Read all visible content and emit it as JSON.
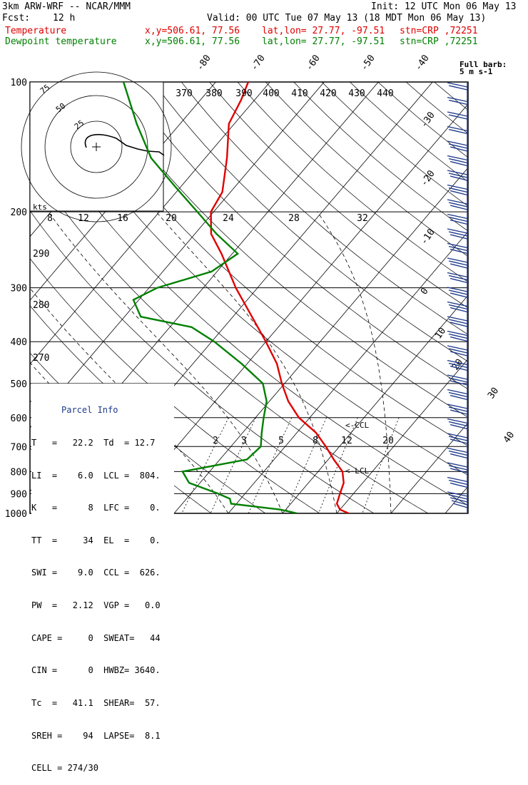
{
  "header": {
    "model": "3km ARW-WRF -- NCAR/MMM",
    "init": "Init: 12 UTC Mon 06 May 13",
    "fcst_label": "Fcst:",
    "fcst_value": "12 h",
    "valid": "Valid: 00 UTC Tue 07 May 13 (18 MDT Mon 06 May 13)",
    "temp_label": "Temperature",
    "dew_label": "Dewpoint temperature",
    "xy": "x,y=506.61, 77.56",
    "latlon": "lat,lon= 27.77, -97.51",
    "stn": "stn=CRP ,72251",
    "temp_color": "#e00000",
    "dew_color": "#008000"
  },
  "chart_data": {
    "type": "skew-t",
    "pressure_ticks": [
      100,
      200,
      300,
      400,
      500,
      600,
      700,
      800,
      900,
      1000
    ],
    "isotherm_labels": [
      "-80",
      "-70",
      "-60",
      "-50",
      "-40",
      "-30",
      "-20",
      "-10",
      "0",
      "10",
      "20",
      "30",
      "40"
    ],
    "theta_labels": [
      "370",
      "380",
      "390",
      "400",
      "410",
      "420",
      "430",
      "440",
      "290",
      "280",
      "270"
    ],
    "mixing_ratio_labels": [
      "2",
      "3",
      "5",
      "8",
      "12",
      "20"
    ],
    "hodograph_axis_labels": [
      "8",
      "12",
      "16",
      "20",
      "24",
      "28",
      "32"
    ],
    "hodograph_ring_labels": [
      "75",
      "50",
      "25"
    ],
    "hodograph_units": "kts",
    "lcl_labels": [
      "<-CCL",
      "<-LCL"
    ],
    "barb_legend": [
      "Full barb:",
      "5 m s-1"
    ],
    "temperature": [
      {
        "p": 1000,
        "t": 22.2
      },
      {
        "p": 980,
        "t": 20.0
      },
      {
        "p": 950,
        "t": 18.5
      },
      {
        "p": 900,
        "t": 17.5
      },
      {
        "p": 850,
        "t": 16.5
      },
      {
        "p": 800,
        "t": 14.5
      },
      {
        "p": 750,
        "t": 11.0
      },
      {
        "p": 700,
        "t": 7.5
      },
      {
        "p": 650,
        "t": 3.5
      },
      {
        "p": 600,
        "t": -2.0
      },
      {
        "p": 550,
        "t": -6.5
      },
      {
        "p": 500,
        "t": -10.5
      },
      {
        "p": 450,
        "t": -14.5
      },
      {
        "p": 400,
        "t": -20.0
      },
      {
        "p": 350,
        "t": -26.5
      },
      {
        "p": 300,
        "t": -34.0
      },
      {
        "p": 250,
        "t": -42.0
      },
      {
        "p": 225,
        "t": -47.0
      },
      {
        "p": 200,
        "t": -50.5
      },
      {
        "p": 180,
        "t": -51.5
      },
      {
        "p": 150,
        "t": -56.0
      },
      {
        "p": 125,
        "t": -61.0
      },
      {
        "p": 110,
        "t": -62.5
      },
      {
        "p": 100,
        "t": -64.0
      }
    ],
    "dewpoint": [
      {
        "p": 1000,
        "t": 12.7
      },
      {
        "p": 980,
        "t": 9.0
      },
      {
        "p": 950,
        "t": -1.0
      },
      {
        "p": 925,
        "t": -2.0
      },
      {
        "p": 900,
        "t": -5.0
      },
      {
        "p": 850,
        "t": -12.0
      },
      {
        "p": 800,
        "t": -15.0
      },
      {
        "p": 750,
        "t": -5.0
      },
      {
        "p": 700,
        "t": -4.5
      },
      {
        "p": 650,
        "t": -6.5
      },
      {
        "p": 600,
        "t": -8.5
      },
      {
        "p": 550,
        "t": -10.5
      },
      {
        "p": 500,
        "t": -14.0
      },
      {
        "p": 450,
        "t": -21.0
      },
      {
        "p": 400,
        "t": -29.5
      },
      {
        "p": 370,
        "t": -36.0
      },
      {
        "p": 350,
        "t": -47.0
      },
      {
        "p": 320,
        "t": -51.0
      },
      {
        "p": 300,
        "t": -48.5
      },
      {
        "p": 275,
        "t": -41.0
      },
      {
        "p": 250,
        "t": -39.0
      },
      {
        "p": 225,
        "t": -46.0
      },
      {
        "p": 200,
        "t": -53.0
      },
      {
        "p": 175,
        "t": -61.0
      },
      {
        "p": 150,
        "t": -70.0
      },
      {
        "p": 125,
        "t": -78.0
      },
      {
        "p": 100,
        "t": -87.0
      }
    ]
  },
  "parcel": {
    "title": "Parcel Info",
    "rows": [
      "T   =   22.2  Td  = 12.7",
      "LI  =    6.0  LCL =  804.",
      "K   =      8  LFC =    0.",
      "TT  =     34  EL  =    0.",
      "SWI =    9.0  CCL =  626.",
      "PW  =   2.12  VGP =   0.0",
      "CAPE =     0  SWEAT=   44",
      "CIN =      0  HWBZ= 3640.",
      "Tc  =   41.1  SHEAR=  57.",
      "SREH =    94  LAPSE=  8.1",
      "CELL = 274/30"
    ]
  }
}
